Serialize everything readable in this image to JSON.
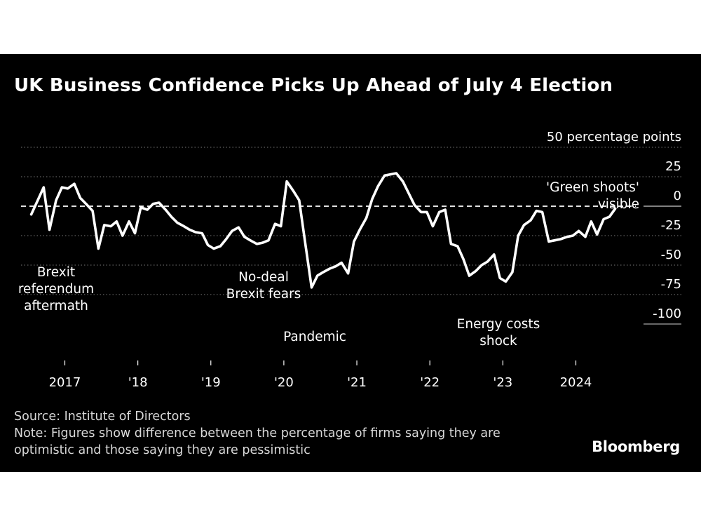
{
  "title": "UK Business Confidence Picks Up Ahead of July 4 Election",
  "source": "Source: Institute of Directors",
  "note_lines": [
    "Note: Figures show difference between the percentage of firms saying they are",
    "optimistic and those saying they are pessimistic"
  ],
  "brand": "Bloomberg",
  "chart_data": {
    "type": "line",
    "unit_label": "50 percentage points",
    "ylim": [
      -100,
      50
    ],
    "y_ticks": [
      {
        "value": 50,
        "label": "50 percentage points"
      },
      {
        "value": 25,
        "label": "25"
      },
      {
        "value": 0,
        "label": "0"
      },
      {
        "value": -25,
        "label": "-25"
      },
      {
        "value": -50,
        "label": "-50"
      },
      {
        "value": -75,
        "label": "-75"
      },
      {
        "value": -100,
        "label": "-100"
      }
    ],
    "x_ticks": [
      {
        "value": 2017.0,
        "label": "2017"
      },
      {
        "value": 2018.0,
        "label": "'18"
      },
      {
        "value": 2019.0,
        "label": "'19"
      },
      {
        "value": 2020.0,
        "label": "'20"
      },
      {
        "value": 2021.0,
        "label": "'21"
      },
      {
        "value": 2022.0,
        "label": "'22"
      },
      {
        "value": 2023.0,
        "label": "'23"
      },
      {
        "value": 2024.0,
        "label": "2024"
      }
    ],
    "xlim": [
      2016.4,
      2024.85
    ],
    "grid": true,
    "zero_line": "dashed",
    "series": [
      {
        "color": "#ffffff",
        "points": [
          [
            2016.54,
            -7
          ],
          [
            2016.71,
            16
          ],
          [
            2016.79,
            -20
          ],
          [
            2016.88,
            5
          ],
          [
            2016.96,
            16
          ],
          [
            2017.04,
            15
          ],
          [
            2017.13,
            19
          ],
          [
            2017.21,
            7
          ],
          [
            2017.29,
            2
          ],
          [
            2017.38,
            -4
          ],
          [
            2017.46,
            -36
          ],
          [
            2017.54,
            -16
          ],
          [
            2017.63,
            -17
          ],
          [
            2017.71,
            -13
          ],
          [
            2017.79,
            -25
          ],
          [
            2017.88,
            -13
          ],
          [
            2017.96,
            -23
          ],
          [
            2018.04,
            -1
          ],
          [
            2018.13,
            -3
          ],
          [
            2018.21,
            2
          ],
          [
            2018.29,
            3
          ],
          [
            2018.38,
            -3
          ],
          [
            2018.46,
            -9
          ],
          [
            2018.54,
            -14
          ],
          [
            2018.63,
            -17
          ],
          [
            2018.71,
            -20
          ],
          [
            2018.79,
            -22
          ],
          [
            2018.88,
            -23
          ],
          [
            2018.96,
            -33
          ],
          [
            2019.04,
            -36
          ],
          [
            2019.13,
            -34
          ],
          [
            2019.21,
            -28
          ],
          [
            2019.29,
            -21
          ],
          [
            2019.38,
            -18
          ],
          [
            2019.46,
            -26
          ],
          [
            2019.54,
            -29
          ],
          [
            2019.63,
            -32
          ],
          [
            2019.71,
            -31
          ],
          [
            2019.79,
            -29
          ],
          [
            2019.88,
            -15
          ],
          [
            2019.96,
            -17
          ],
          [
            2020.04,
            21
          ],
          [
            2020.13,
            13
          ],
          [
            2020.21,
            5
          ],
          [
            2020.29,
            -30
          ],
          [
            2020.38,
            -69
          ],
          [
            2020.46,
            -59
          ],
          [
            2020.54,
            -56
          ],
          [
            2020.63,
            -53
          ],
          [
            2020.71,
            -51
          ],
          [
            2020.79,
            -48
          ],
          [
            2020.88,
            -57
          ],
          [
            2020.96,
            -30
          ],
          [
            2021.04,
            -20
          ],
          [
            2021.13,
            -10
          ],
          [
            2021.21,
            6
          ],
          [
            2021.29,
            17
          ],
          [
            2021.38,
            26
          ],
          [
            2021.46,
            27
          ],
          [
            2021.54,
            28
          ],
          [
            2021.63,
            21
          ],
          [
            2021.71,
            11
          ],
          [
            2021.79,
            1
          ],
          [
            2021.88,
            -5
          ],
          [
            2021.96,
            -5
          ],
          [
            2022.04,
            -17
          ],
          [
            2022.13,
            -5
          ],
          [
            2022.21,
            -3
          ],
          [
            2022.29,
            -32
          ],
          [
            2022.38,
            -34
          ],
          [
            2022.46,
            -45
          ],
          [
            2022.54,
            -59
          ],
          [
            2022.63,
            -55
          ],
          [
            2022.71,
            -50
          ],
          [
            2022.79,
            -47
          ],
          [
            2022.88,
            -41
          ],
          [
            2022.96,
            -61
          ],
          [
            2023.04,
            -64
          ],
          [
            2023.13,
            -56
          ],
          [
            2023.21,
            -25
          ],
          [
            2023.29,
            -16
          ],
          [
            2023.38,
            -12
          ],
          [
            2023.46,
            -4
          ],
          [
            2023.54,
            -5
          ],
          [
            2023.63,
            -30
          ],
          [
            2023.71,
            -29
          ],
          [
            2023.79,
            -28
          ],
          [
            2023.88,
            -26
          ],
          [
            2023.96,
            -25
          ],
          [
            2024.04,
            -21
          ],
          [
            2024.13,
            -26
          ],
          [
            2024.21,
            -13
          ],
          [
            2024.29,
            -24
          ],
          [
            2024.38,
            -11
          ],
          [
            2024.46,
            -9
          ],
          [
            2024.54,
            -2
          ]
        ]
      }
    ],
    "annotations": [
      {
        "id": "brexit",
        "lines": [
          "Brexit",
          "referendum",
          "aftermath"
        ]
      },
      {
        "id": "no-deal",
        "lines": [
          "No-deal",
          "Brexit fears"
        ]
      },
      {
        "id": "pandemic",
        "lines": [
          "Pandemic"
        ]
      },
      {
        "id": "energy",
        "lines": [
          "Energy costs",
          "shock"
        ]
      },
      {
        "id": "green-shoots",
        "lines": [
          "'Green shoots'",
          "visible"
        ]
      }
    ]
  }
}
